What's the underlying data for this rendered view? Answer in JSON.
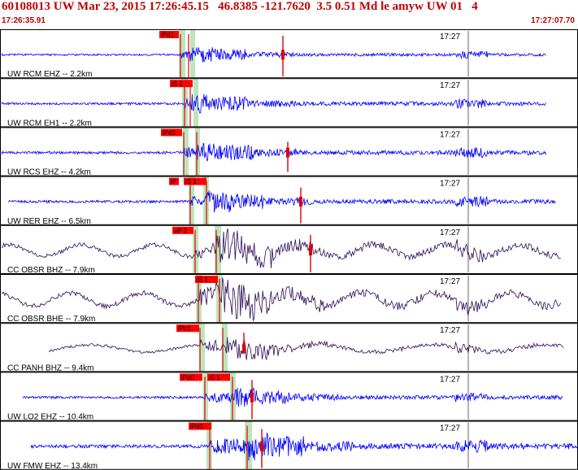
{
  "header": {
    "title": "60108013 UW Mar 23, 2015 17:26:45.15   46.8385 -121.7620  3.5 0.51 Md le amyw UW 01   4",
    "time_start": "17:26:35.91",
    "time_end": "17:27:07.70"
  },
  "colors": {
    "header_text": "#c00000",
    "trace_blue": "#0000ff",
    "trace_dark": "#2a0a55",
    "pick_red": "#e00000",
    "pick_box": "#ff0000",
    "window_green": "#bde5bd",
    "label_text": "#000000"
  },
  "time_marker": "17:27",
  "traces": [
    {
      "label": "UW RCM EHZ -- 2.2km",
      "picks": [
        "iPd1"
      ],
      "color": "blue"
    },
    {
      "label": "UW RCM EH1 -- 2.2km",
      "picks": [
        "iS 1"
      ],
      "color": "blue"
    },
    {
      "label": "UW RCS EHZ -- 4.2km",
      "picks": [
        "iPd1"
      ],
      "color": "blue"
    },
    {
      "label": "UW RER EHZ -- 6.5km",
      "picks": [
        "iP",
        "iS 1"
      ],
      "color": "blue"
    },
    {
      "label": "CC OBSR BHZ -- 7.9km",
      "picks": [
        "eP 2"
      ],
      "color": "dark"
    },
    {
      "label": "CC OBSR BHE -- 7.9km",
      "picks": [
        "iS 1"
      ],
      "color": "dark"
    },
    {
      "label": "CC PANH BHZ -- 9.4km",
      "picks": [
        "iPc1"
      ],
      "color": "dark"
    },
    {
      "label": "UW LO2 EHZ -- 10.4km",
      "picks": [
        "iPd0",
        "iS 1"
      ],
      "color": "blue"
    },
    {
      "label": "UW FMW EHZ -- 13.4km",
      "picks": [
        "iPd1"
      ],
      "color": "blue"
    }
  ]
}
